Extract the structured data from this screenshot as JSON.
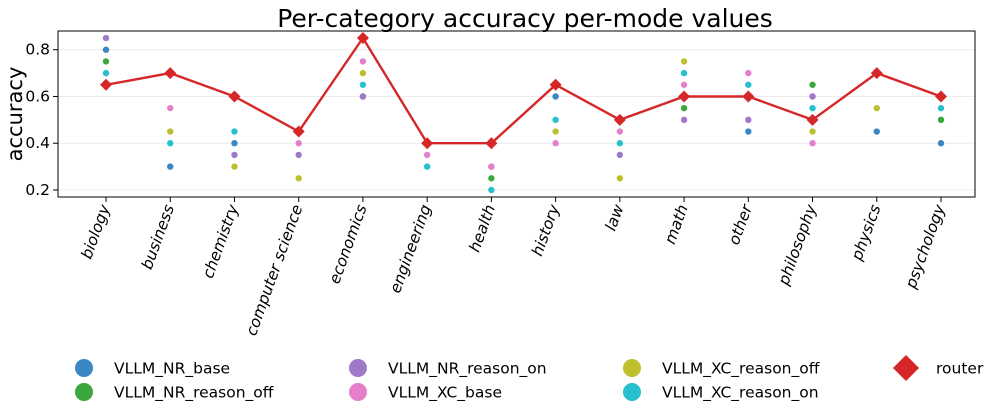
{
  "chart_data": {
    "type": "scatter",
    "title": "Per-category accuracy per-mode values",
    "xlabel": "",
    "ylabel": "accuracy",
    "ylim": [
      0.17,
      0.88
    ],
    "yticks": [
      0.2,
      0.4,
      0.6,
      0.8
    ],
    "ytick_labels": [
      "0.2",
      "0.4",
      "0.6",
      "0.8"
    ],
    "grid": "horizontal",
    "legend_position": "bottom",
    "categories": [
      "biology",
      "business",
      "chemistry",
      "computer science",
      "economics",
      "engineering",
      "health",
      "history",
      "law",
      "math",
      "other",
      "philosophy",
      "physics",
      "psychology"
    ],
    "series": [
      {
        "name": "VLLM_NR_base",
        "color": "#3b87c4",
        "marker": "circle",
        "values": [
          0.8,
          0.3,
          0.4,
          null,
          0.6,
          null,
          null,
          0.6,
          null,
          null,
          0.45,
          null,
          0.45,
          0.4
        ]
      },
      {
        "name": "VLLM_NR_reason_off",
        "color": "#3aa63c",
        "marker": "circle",
        "values": [
          0.75,
          null,
          null,
          null,
          null,
          null,
          0.25,
          null,
          null,
          0.55,
          null,
          0.65,
          null,
          0.5
        ]
      },
      {
        "name": "VLLM_NR_reason_on",
        "color": "#9e79c6",
        "marker": "circle",
        "values": [
          0.85,
          null,
          0.35,
          0.35,
          0.6,
          null,
          0.3,
          null,
          0.35,
          0.5,
          0.5,
          0.6,
          null,
          null
        ]
      },
      {
        "name": "VLLM_XC_base",
        "color": "#e57fcb",
        "marker": "circle",
        "values": [
          null,
          0.55,
          null,
          0.4,
          0.75,
          0.35,
          0.3,
          0.4,
          0.45,
          0.65,
          0.7,
          0.4,
          null,
          null
        ]
      },
      {
        "name": "VLLM_XC_reason_off",
        "color": "#bdbf2f",
        "marker": "circle",
        "values": [
          0.65,
          0.45,
          0.3,
          0.25,
          0.7,
          null,
          null,
          0.45,
          0.25,
          0.75,
          null,
          0.45,
          0.55,
          null
        ]
      },
      {
        "name": "VLLM_XC_reason_on",
        "color": "#28c0cf",
        "marker": "circle",
        "values": [
          0.7,
          0.4,
          0.45,
          null,
          0.65,
          0.3,
          0.2,
          0.5,
          0.4,
          0.7,
          0.65,
          0.55,
          null,
          0.55
        ]
      },
      {
        "name": "router",
        "color": "#d62728",
        "marker": "diamond",
        "line": true,
        "values": [
          0.65,
          0.7,
          0.6,
          0.45,
          0.85,
          0.4,
          0.4,
          0.65,
          0.5,
          0.6,
          0.6,
          0.5,
          0.7,
          0.6
        ]
      }
    ],
    "legend_order": [
      "VLLM_NR_base",
      "VLLM_NR_reason_on",
      "VLLM_XC_reason_off",
      "router",
      "VLLM_NR_reason_off",
      "VLLM_XC_base",
      "VLLM_XC_reason_on"
    ]
  }
}
